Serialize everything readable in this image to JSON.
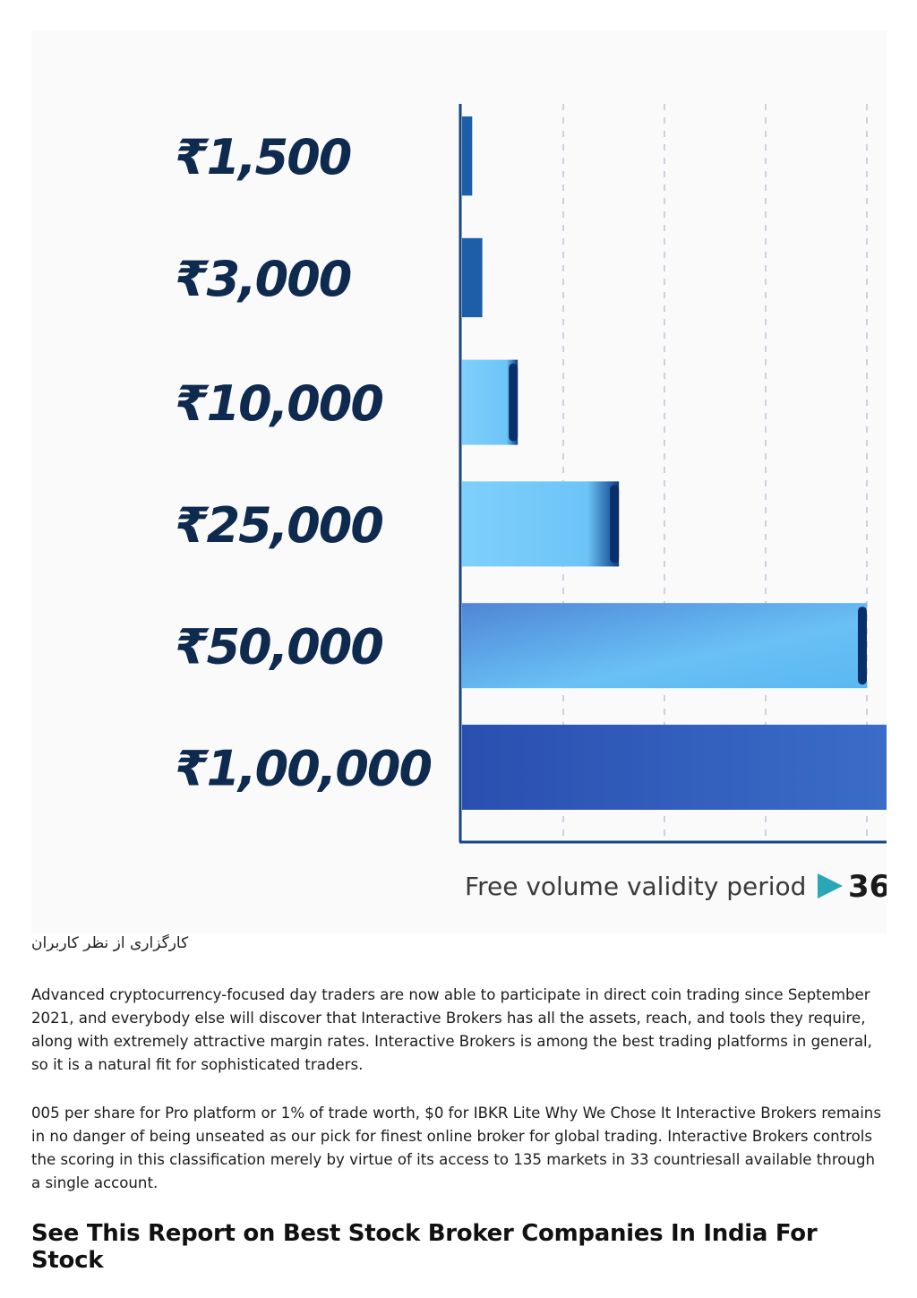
{
  "image": {
    "chart_data": {
      "type": "bar",
      "orientation": "horizontal",
      "categories": [
        "₹1,500",
        "₹3,000",
        "₹10,000",
        "₹25,000",
        "₹50,000",
        "₹1,00,000"
      ],
      "values": [
        1,
        2,
        5.5,
        15.5,
        40,
        42
      ],
      "xlabel": "Free volume validity period",
      "xlabel_suffix": "36",
      "grid": "vertical dashed",
      "colors": [
        "#1c5fa8",
        "#1c5fa8",
        "#6cc4f7",
        "#6cc4f7",
        "#5aa9ea",
        "#2f5bb7"
      ]
    }
  },
  "caption": "کارگزاری از نظر کاربران",
  "paragraphs": [
    "Advanced cryptocurrency-focused day traders are now able to participate in direct coin trading since September 2021, and everybody else will discover that Interactive Brokers has all the assets, reach, and tools they require, along with extremely attractive margin rates. Interactive Brokers is among the best trading platforms in general, so it is a natural fit for sophisticated traders.",
    "005 per share for Pro platform or 1% of trade worth, $0 for IBKR Lite Why We Chose It Interactive Brokers remains in no danger of being unseated as our pick for finest online broker for global trading. Interactive Brokers controls the scoring in this classification merely by virtue of its access to 135 markets in 33 countriesall available through a single account."
  ],
  "heading": "See This Report on Best Stock Broker Companies In India For Stock"
}
